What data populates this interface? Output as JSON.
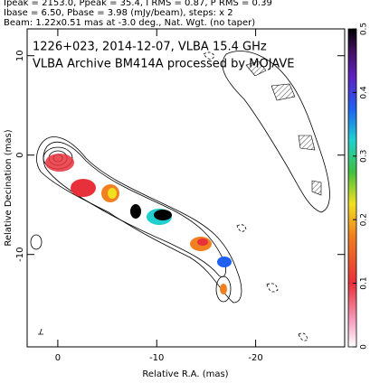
{
  "header": {
    "lines": [
      "Ipeak = 2153.0, Ppeak = 35.4, I RMS = 0.87, P RMS = 0.39",
      "Ibase = 6.50, Pbase = 3.98 (mJy/beam), steps: x 2",
      "Beam: 1.22x0.51 mas at -3.0 deg., Nat. Wgt. (no taper)"
    ]
  },
  "chart_data": {
    "type": "image",
    "title": "1226+023, 2014-12-07, VLBA 15.4 GHz",
    "subtitle": "VLBA Archive BM414A processed by MOJAVE",
    "xlabel": "Relative R.A. (mas)",
    "ylabel": "Relative Decination (mas)",
    "xlim": [
      3.1,
      -29
    ],
    "xticks": [
      0,
      -10,
      -20
    ],
    "ylim": [
      -19.3,
      12.7
    ],
    "yticks": [
      -10,
      0,
      10
    ],
    "colorbar": {
      "lim": [
        0,
        0.5
      ],
      "ticks": [
        0,
        0.1,
        0.2,
        0.3,
        0.4,
        0.5
      ]
    }
  }
}
